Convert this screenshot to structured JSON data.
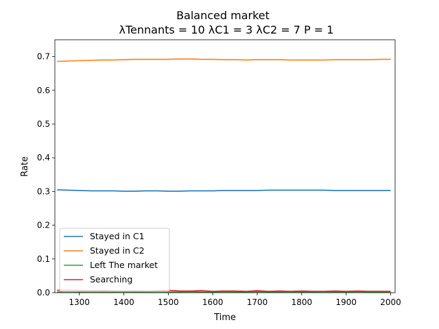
{
  "chart_data": {
    "type": "line",
    "title": "Balanced market",
    "subtitle": "λTennants = 10 λC1 = 3 λC2 = 7 P = 1",
    "xlabel": "Time",
    "ylabel": "Rate",
    "xlim": [
      1245,
      2010
    ],
    "ylim": [
      0.0,
      0.75
    ],
    "xticks": [
      1300,
      1400,
      1500,
      1600,
      1700,
      1800,
      1900,
      2000
    ],
    "yticks": [
      0.0,
      0.1,
      0.2,
      0.3,
      0.4,
      0.5,
      0.6,
      0.7
    ],
    "grid": false,
    "legend_position": "lower-left",
    "series": [
      {
        "name": "Stayed in C1",
        "color": "#1f77b4",
        "x": [
          1250,
          1275,
          1300,
          1325,
          1350,
          1375,
          1400,
          1425,
          1450,
          1475,
          1500,
          1525,
          1550,
          1575,
          1600,
          1625,
          1650,
          1675,
          1700,
          1725,
          1750,
          1775,
          1800,
          1825,
          1850,
          1875,
          1900,
          1925,
          1950,
          1975,
          2000
        ],
        "y": [
          0.305,
          0.304,
          0.303,
          0.302,
          0.302,
          0.302,
          0.301,
          0.301,
          0.302,
          0.302,
          0.301,
          0.301,
          0.302,
          0.302,
          0.302,
          0.303,
          0.303,
          0.303,
          0.303,
          0.304,
          0.304,
          0.304,
          0.304,
          0.304,
          0.304,
          0.303,
          0.303,
          0.303,
          0.303,
          0.303,
          0.303
        ]
      },
      {
        "name": "Stayed in C2",
        "color": "#ff7f0e",
        "x": [
          1250,
          1275,
          1300,
          1325,
          1350,
          1375,
          1400,
          1425,
          1450,
          1475,
          1500,
          1525,
          1550,
          1575,
          1600,
          1625,
          1650,
          1675,
          1700,
          1725,
          1750,
          1775,
          1800,
          1825,
          1850,
          1875,
          1900,
          1925,
          1950,
          1975,
          2000
        ],
        "y": [
          0.686,
          0.687,
          0.688,
          0.689,
          0.69,
          0.69,
          0.691,
          0.692,
          0.692,
          0.692,
          0.692,
          0.693,
          0.693,
          0.692,
          0.692,
          0.691,
          0.691,
          0.69,
          0.691,
          0.691,
          0.691,
          0.69,
          0.69,
          0.69,
          0.69,
          0.691,
          0.691,
          0.691,
          0.691,
          0.692,
          0.692
        ]
      },
      {
        "name": "Left The market",
        "color": "#2ca02c",
        "x": [
          1250,
          1275,
          1300,
          1325,
          1350,
          1375,
          1400,
          1425,
          1450,
          1475,
          1500,
          1525,
          1550,
          1575,
          1600,
          1625,
          1650,
          1675,
          1700,
          1725,
          1750,
          1775,
          1800,
          1825,
          1850,
          1875,
          1900,
          1925,
          1950,
          1975,
          2000
        ],
        "y": [
          0.002,
          0.003,
          0.002,
          0.003,
          0.002,
          0.002,
          0.003,
          0.002,
          0.002,
          0.003,
          0.002,
          0.002,
          0.003,
          0.002,
          0.002,
          0.003,
          0.002,
          0.002,
          0.003,
          0.002,
          0.002,
          0.003,
          0.002,
          0.002,
          0.003,
          0.002,
          0.002,
          0.003,
          0.002,
          0.002,
          0.002
        ]
      },
      {
        "name": "Searching",
        "color": "#d62728",
        "x": [
          1250,
          1275,
          1300,
          1325,
          1350,
          1375,
          1400,
          1425,
          1450,
          1475,
          1500,
          1525,
          1550,
          1575,
          1600,
          1625,
          1650,
          1675,
          1700,
          1725,
          1750,
          1775,
          1800,
          1825,
          1850,
          1875,
          1900,
          1925,
          1950,
          1975,
          2000
        ],
        "y": [
          0.007,
          0.008,
          0.007,
          0.006,
          0.007,
          0.006,
          0.005,
          0.006,
          0.005,
          0.006,
          0.007,
          0.005,
          0.005,
          0.006,
          0.004,
          0.005,
          0.005,
          0.004,
          0.006,
          0.004,
          0.005,
          0.004,
          0.005,
          0.004,
          0.004,
          0.005,
          0.004,
          0.005,
          0.004,
          0.004,
          0.004
        ]
      }
    ]
  }
}
